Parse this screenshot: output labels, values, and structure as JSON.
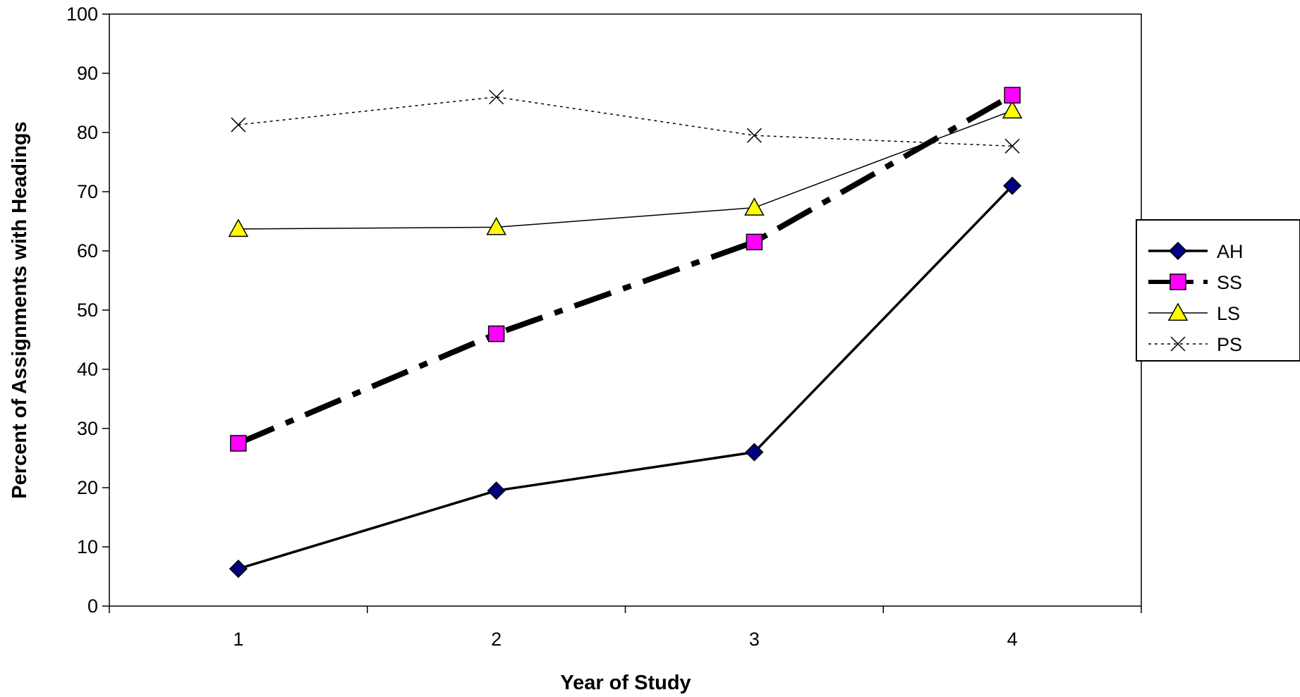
{
  "chart_data": {
    "type": "line",
    "xlabel": "Year of Study",
    "ylabel": "Percent of Assignments with Headings",
    "categories": [
      "1",
      "2",
      "3",
      "4"
    ],
    "ylim": [
      0,
      100
    ],
    "yticks": [
      0,
      10,
      20,
      30,
      40,
      50,
      60,
      70,
      80,
      90,
      100
    ],
    "grid": false,
    "legend_position": "right",
    "series": [
      {
        "name": "AH",
        "values": [
          6.3,
          19.5,
          26,
          71
        ],
        "color": "#000000",
        "marker": "diamond",
        "marker_fill": "#000080",
        "line_style": "solid-thick"
      },
      {
        "name": "SS",
        "values": [
          27.5,
          46,
          61.5,
          86.3
        ],
        "color": "#000000",
        "marker": "square",
        "marker_fill": "#ff00ff",
        "line_style": "dash-dot-heavy"
      },
      {
        "name": "LS",
        "values": [
          63.7,
          64,
          67.3,
          83.7
        ],
        "color": "#000000",
        "marker": "triangle",
        "marker_fill": "#ffff00",
        "line_style": "thin-solid"
      },
      {
        "name": "PS",
        "values": [
          81.3,
          86,
          79.5,
          77.7
        ],
        "color": "#000000",
        "marker": "x",
        "marker_fill": "none",
        "line_style": "dotted"
      }
    ]
  }
}
